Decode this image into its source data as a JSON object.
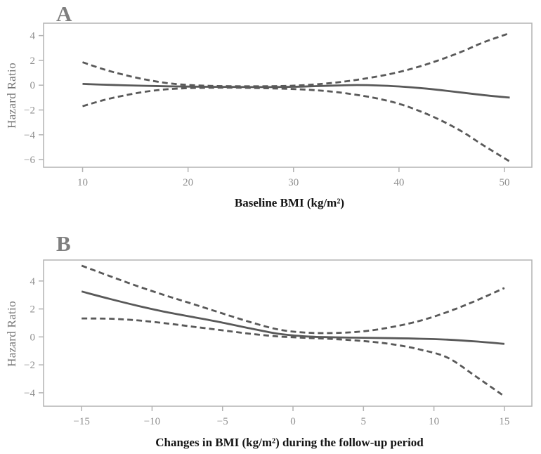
{
  "figure": {
    "background": "#ffffff",
    "curve_color": "#595959",
    "axis_color": "#b3b3b3",
    "tick_label_color": "#8f8f8f",
    "panel_letter_color": "#7f7f7f",
    "axis_title_color": "#141414"
  },
  "chart_data": [
    {
      "type": "line",
      "panel_label": "A",
      "ylabel": "Hazard Ratio",
      "xlabel": "Baseline BMI (kg/m²)",
      "legend": "none",
      "grid": false,
      "xlim": [
        6.3,
        52.6
      ],
      "ylim": [
        -6.62,
        5.0
      ],
      "x_ticks": [
        10,
        20,
        30,
        40,
        50
      ],
      "y_ticks": [
        4,
        2,
        0,
        -2,
        -4,
        -6
      ],
      "x": [
        10,
        12,
        14,
        16,
        18,
        20,
        22,
        24,
        26,
        28,
        30,
        32,
        34,
        36,
        38,
        40,
        42,
        44,
        46,
        48,
        50.5
      ],
      "series": [
        {
          "name": "estimate",
          "style": "solid",
          "values": [
            0.1,
            0.04,
            -0.01,
            -0.05,
            -0.09,
            -0.11,
            -0.13,
            -0.14,
            -0.15,
            -0.15,
            -0.13,
            -0.08,
            -0.03,
            0.01,
            -0.02,
            -0.1,
            -0.23,
            -0.4,
            -0.6,
            -0.8,
            -1.0
          ]
        },
        {
          "name": "upper-95ci",
          "style": "dashed",
          "values": [
            1.85,
            1.28,
            0.82,
            0.45,
            0.17,
            0.02,
            -0.05,
            -0.08,
            -0.09,
            -0.08,
            -0.04,
            0.06,
            0.21,
            0.43,
            0.71,
            1.06,
            1.52,
            2.08,
            2.72,
            3.45,
            4.2
          ]
        },
        {
          "name": "lower-95ci",
          "style": "dashed",
          "values": [
            -1.7,
            -1.2,
            -0.82,
            -0.52,
            -0.33,
            -0.24,
            -0.21,
            -0.2,
            -0.22,
            -0.26,
            -0.31,
            -0.4,
            -0.55,
            -0.78,
            -1.08,
            -1.5,
            -2.1,
            -2.85,
            -3.75,
            -4.85,
            -6.15
          ]
        }
      ]
    },
    {
      "type": "line",
      "panel_label": "B",
      "ylabel": "Hazard Ratio",
      "xlabel": "Changes in BMI (kg/m²) during the follow-up period",
      "legend": "none",
      "grid": false,
      "xlim": [
        -17.7,
        16.95
      ],
      "ylim": [
        -4.96,
        5.5
      ],
      "x_ticks": [
        -15,
        -10,
        -5,
        0,
        5,
        10,
        15
      ],
      "y_ticks": [
        4,
        2,
        0,
        -2,
        -4
      ],
      "x": [
        -15,
        -13,
        -11,
        -9,
        -7,
        -5,
        -3,
        -1,
        1,
        3,
        5,
        7,
        9,
        11,
        13,
        15
      ],
      "series": [
        {
          "name": "estimate",
          "style": "solid",
          "values": [
            3.25,
            2.72,
            2.22,
            1.78,
            1.4,
            1.02,
            0.6,
            0.22,
            0.03,
            -0.03,
            -0.06,
            -0.09,
            -0.13,
            -0.2,
            -0.33,
            -0.5
          ]
        },
        {
          "name": "upper-95ci",
          "style": "dashed",
          "values": [
            5.1,
            4.35,
            3.62,
            2.95,
            2.32,
            1.68,
            1.05,
            0.52,
            0.3,
            0.28,
            0.4,
            0.7,
            1.15,
            1.8,
            2.6,
            3.5
          ]
        },
        {
          "name": "lower-95ci",
          "style": "dashed",
          "values": [
            1.32,
            1.3,
            1.18,
            0.97,
            0.72,
            0.47,
            0.22,
            0.03,
            -0.07,
            -0.16,
            -0.3,
            -0.52,
            -0.9,
            -1.5,
            -2.85,
            -4.25
          ]
        }
      ]
    }
  ]
}
